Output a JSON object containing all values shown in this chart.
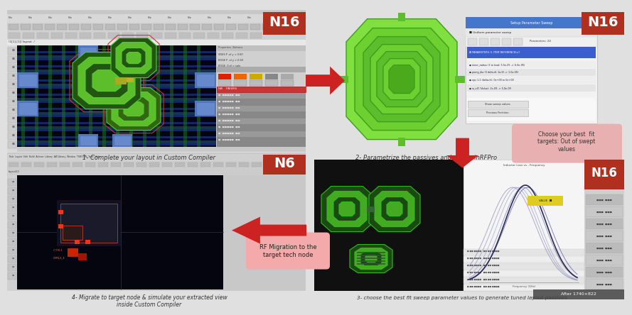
{
  "bg_color": "#e0e0e0",
  "n16_color": "#b03020",
  "n6_color": "#b03020",
  "arrow_color": "#cc2222",
  "step1_label": "1- Complete your layout in Custom Compiler",
  "step2_label": "2- Parametrize the passives and sweep inRFPro",
  "step3_label": "3- choose the best fit sweep parameter values to generate tuned layout passives",
  "step4_label": "4- Migrate to target node & simulate your extracted view\ninside Custom Compiler",
  "rf_migration_text": "RF Migration to the\ntarget tech node",
  "choose_best_text": "Choose your best  fit\ntargets: Out of swept\nvalues",
  "after_text": "After",
  "watermark_text": "1740×822",
  "n16_label": "N16",
  "n6_label": "N6",
  "light_pink_color": "#e8b0b0"
}
